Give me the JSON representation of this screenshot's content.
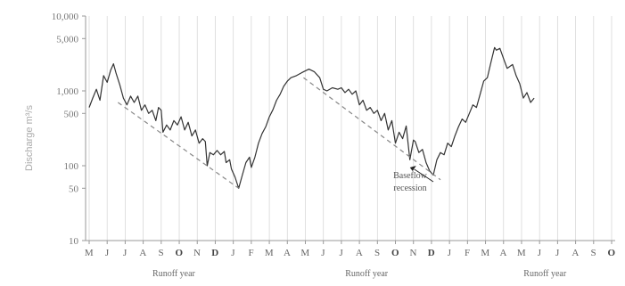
{
  "chart_data": {
    "type": "line",
    "title": "",
    "ylabel": "Discharge m³/s",
    "y_scale": "log",
    "ylim": [
      10,
      10000
    ],
    "y_ticks": [
      {
        "value": 10,
        "label": "10"
      },
      {
        "value": 50,
        "label": "50"
      },
      {
        "value": 100,
        "label": "100"
      },
      {
        "value": 500,
        "label": "500"
      },
      {
        "value": 1000,
        "label": "1,000"
      },
      {
        "value": 5000,
        "label": "5,000"
      },
      {
        "value": 10000,
        "label": "10,000"
      }
    ],
    "month_labels": [
      "M",
      "J",
      "J",
      "A",
      "S",
      "O",
      "N",
      "D",
      "J",
      "F",
      "M",
      "A",
      "M",
      "J",
      "J",
      "A",
      "S",
      "O",
      "N",
      "D",
      "J",
      "F",
      "M",
      "A",
      "M",
      "J",
      "J",
      "A",
      "S",
      "O"
    ],
    "bold_month_indices": [
      5,
      7,
      17,
      19,
      29
    ],
    "runoff_year_labels": [
      "Runoff year",
      "Runoff year",
      "Runoff year"
    ],
    "annotation": {
      "line1": "Baseflow",
      "line2": "recession"
    },
    "grid": "vertical",
    "colors": {
      "line": "#333333",
      "baseflow": "#888888",
      "grid": "#d8d8d8",
      "annotation_arrow": "#222222"
    },
    "series": [
      {
        "style": "solid",
        "points": [
          [
            0,
            600
          ],
          [
            0.2,
            800
          ],
          [
            0.4,
            1050
          ],
          [
            0.6,
            750
          ],
          [
            0.8,
            1600
          ],
          [
            1.0,
            1300
          ],
          [
            1.2,
            1900
          ],
          [
            1.35,
            2300
          ],
          [
            1.5,
            1700
          ],
          [
            1.7,
            1200
          ],
          [
            1.9,
            800
          ],
          [
            2.1,
            650
          ],
          [
            2.3,
            850
          ],
          [
            2.5,
            700
          ],
          [
            2.7,
            850
          ],
          [
            2.9,
            550
          ],
          [
            3.1,
            650
          ],
          [
            3.3,
            500
          ],
          [
            3.5,
            550
          ],
          [
            3.7,
            400
          ],
          [
            3.85,
            600
          ],
          [
            4.0,
            550
          ],
          [
            4.1,
            280
          ],
          [
            4.3,
            350
          ],
          [
            4.5,
            300
          ],
          [
            4.7,
            400
          ],
          [
            4.9,
            350
          ],
          [
            5.1,
            450
          ],
          [
            5.3,
            300
          ],
          [
            5.5,
            380
          ],
          [
            5.7,
            250
          ],
          [
            5.9,
            300
          ],
          [
            6.1,
            200
          ],
          [
            6.3,
            230
          ],
          [
            6.45,
            210
          ],
          [
            6.55,
            100
          ],
          [
            6.7,
            150
          ],
          [
            6.9,
            140
          ],
          [
            7.1,
            160
          ],
          [
            7.3,
            140
          ],
          [
            7.5,
            155
          ],
          [
            7.6,
            110
          ],
          [
            7.8,
            120
          ],
          [
            7.9,
            90
          ],
          [
            8.1,
            70
          ],
          [
            8.3,
            50
          ],
          [
            8.5,
            75
          ],
          [
            8.7,
            110
          ],
          [
            8.9,
            130
          ],
          [
            9.0,
            95
          ],
          [
            9.2,
            130
          ],
          [
            9.4,
            200
          ],
          [
            9.6,
            270
          ],
          [
            9.8,
            330
          ],
          [
            10.0,
            450
          ],
          [
            10.2,
            560
          ],
          [
            10.4,
            750
          ],
          [
            10.6,
            900
          ],
          [
            10.8,
            1150
          ],
          [
            11.0,
            1350
          ],
          [
            11.2,
            1500
          ],
          [
            11.5,
            1600
          ],
          [
            11.8,
            1750
          ],
          [
            12.2,
            1950
          ],
          [
            12.5,
            1800
          ],
          [
            12.8,
            1500
          ],
          [
            13.0,
            1050
          ],
          [
            13.2,
            1000
          ],
          [
            13.5,
            1100
          ],
          [
            13.8,
            1050
          ],
          [
            14.0,
            1100
          ],
          [
            14.2,
            950
          ],
          [
            14.4,
            1050
          ],
          [
            14.6,
            900
          ],
          [
            14.8,
            1000
          ],
          [
            15.0,
            650
          ],
          [
            15.2,
            750
          ],
          [
            15.4,
            550
          ],
          [
            15.6,
            600
          ],
          [
            15.8,
            500
          ],
          [
            16.0,
            550
          ],
          [
            16.2,
            400
          ],
          [
            16.4,
            500
          ],
          [
            16.6,
            300
          ],
          [
            16.8,
            400
          ],
          [
            17.0,
            200
          ],
          [
            17.2,
            280
          ],
          [
            17.4,
            230
          ],
          [
            17.6,
            340
          ],
          [
            17.8,
            120
          ],
          [
            18.0,
            220
          ],
          [
            18.1,
            210
          ],
          [
            18.3,
            150
          ],
          [
            18.5,
            165
          ],
          [
            18.7,
            110
          ],
          [
            18.9,
            85
          ],
          [
            19.1,
            75
          ],
          [
            19.3,
            120
          ],
          [
            19.5,
            150
          ],
          [
            19.7,
            140
          ],
          [
            19.9,
            200
          ],
          [
            20.1,
            180
          ],
          [
            20.3,
            250
          ],
          [
            20.5,
            330
          ],
          [
            20.7,
            420
          ],
          [
            20.9,
            380
          ],
          [
            21.1,
            500
          ],
          [
            21.3,
            650
          ],
          [
            21.5,
            600
          ],
          [
            21.7,
            900
          ],
          [
            21.9,
            1350
          ],
          [
            22.1,
            1500
          ],
          [
            22.3,
            2400
          ],
          [
            22.5,
            3800
          ],
          [
            22.6,
            3500
          ],
          [
            22.8,
            3700
          ],
          [
            23.0,
            2700
          ],
          [
            23.2,
            2000
          ],
          [
            23.5,
            2250
          ],
          [
            23.7,
            1600
          ],
          [
            23.9,
            1250
          ],
          [
            24.1,
            800
          ],
          [
            24.3,
            950
          ],
          [
            24.5,
            700
          ],
          [
            24.7,
            800
          ]
        ]
      },
      {
        "style": "dashed",
        "name": "Baseflow recession",
        "segments": [
          [
            [
              1.6,
              700
            ],
            [
              8.3,
              50
            ]
          ],
          [
            [
              11.9,
              1500
            ],
            [
              19.5,
              65
            ]
          ]
        ]
      }
    ]
  }
}
